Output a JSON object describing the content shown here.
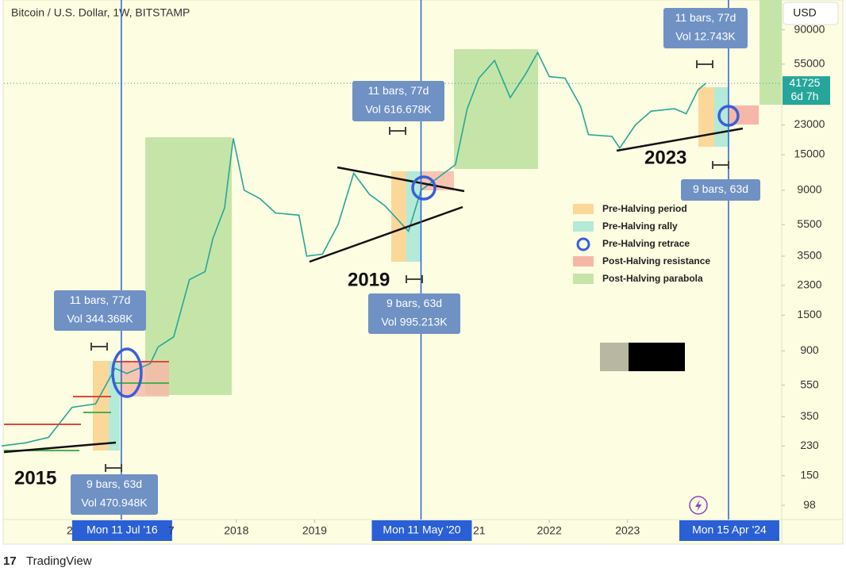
{
  "header": {
    "title": "Bitcoin / U.S. Dollar, 1W, BITSTAMP",
    "currency": "USD",
    "brand": "TradingView"
  },
  "chart_data": {
    "type": "line",
    "log_scale": true,
    "x": [
      2015.0,
      2015.3,
      2015.6,
      2015.9,
      2016.2,
      2016.45,
      2016.6,
      2016.9,
      2017.0,
      2017.2,
      2017.4,
      2017.6,
      2017.7,
      2017.85,
      2017.96,
      2018.1,
      2018.3,
      2018.5,
      2018.8,
      2018.9,
      2019.1,
      2019.3,
      2019.5,
      2019.7,
      2019.9,
      2020.2,
      2020.36,
      2020.6,
      2020.8,
      2020.95,
      2021.1,
      2021.3,
      2021.5,
      2021.7,
      2021.85,
      2022.0,
      2022.2,
      2022.4,
      2022.5,
      2022.8,
      2022.9,
      2023.1,
      2023.3,
      2023.6,
      2023.75,
      2023.9,
      2024.0
    ],
    "series": [
      {
        "color": "#26a69a",
        "values": [
          230,
          240,
          260,
          400,
          420,
          700,
          650,
          750,
          950,
          1100,
          2500,
          2800,
          4500,
          7000,
          19000,
          9000,
          8000,
          6500,
          6300,
          3500,
          3600,
          5500,
          11500,
          8500,
          7200,
          5000,
          9000,
          11000,
          13000,
          29000,
          45000,
          58000,
          34000,
          48000,
          65000,
          46000,
          45000,
          30000,
          20000,
          19500,
          16500,
          23000,
          28000,
          29000,
          27000,
          38000,
          41725
        ]
      }
    ],
    "price_tag": {
      "value": 41725,
      "countdown": "6d 7h"
    },
    "ylim": [
      80,
      138000
    ],
    "yticks": [
      90000,
      55000,
      23000,
      15000,
      9000,
      5500,
      3500,
      2300,
      1500,
      900,
      550,
      350,
      230,
      150,
      98
    ],
    "xlim": [
      2015.03,
      2024.97
    ],
    "xticks": [
      2018,
      2019,
      2022,
      2023
    ],
    "crosshair_dates": [
      {
        "value": 2016.53,
        "label": "Mon 11 Jul '16"
      },
      {
        "value": 2020.36,
        "label": "Mon 11 May '20"
      },
      {
        "value": 2024.29,
        "label": "Mon 15 Apr '24"
      }
    ],
    "measures": [
      {
        "bars": "11 bars, 77d",
        "vol": "Vol 344.368K"
      },
      {
        "bars": "9 bars, 63d",
        "vol": "Vol 470.948K"
      },
      {
        "bars": "11 bars, 77d",
        "vol": "Vol 616.678K"
      },
      {
        "bars": "9 bars, 63d",
        "vol": "Vol 995.213K"
      },
      {
        "bars": "11 bars, 77d",
        "vol": "Vol 12.743K"
      },
      {
        "bars": "9 bars, 63d"
      }
    ],
    "annotations": [
      "2015",
      "2019",
      "2023"
    ],
    "legend": [
      {
        "name": "Pre-Halving period",
        "color": "#fbd89a"
      },
      {
        "name": "Pre-Halving rally",
        "color": "#b3ead8"
      },
      {
        "name": "Pre-Halving retrace",
        "color": "#3a5fd9"
      },
      {
        "name": "Post-Halving resistance",
        "color": "#f7b7a8"
      },
      {
        "name": "Post-Halving parabola",
        "color": "#c5e5a8"
      }
    ]
  }
}
